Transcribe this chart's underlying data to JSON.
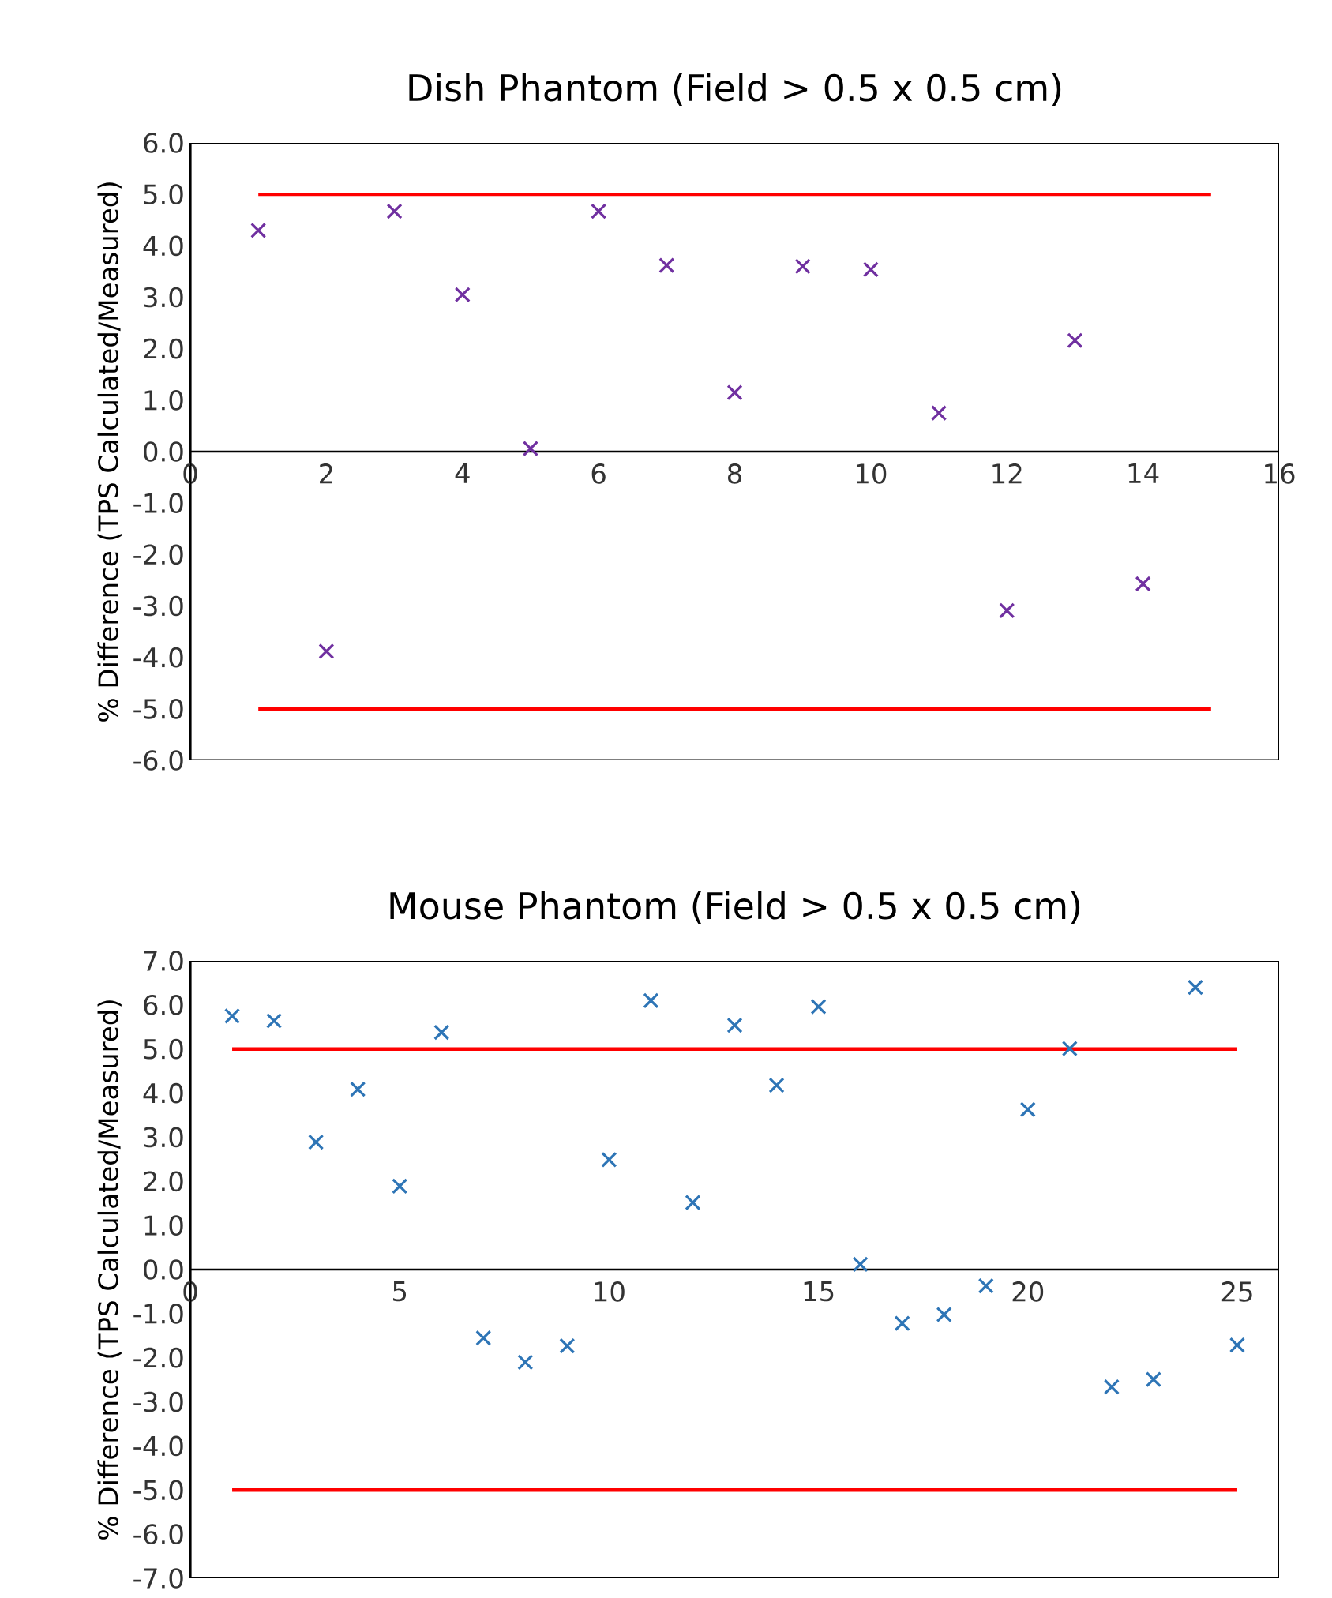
{
  "chart_data": [
    {
      "type": "scatter",
      "title": "Dish Phantom (Field > 0.5 x 0.5 cm)",
      "ylabel": "% Difference (TPS Calculated/Measured)",
      "x": [
        1,
        2,
        3,
        4,
        5,
        6,
        7,
        8,
        9,
        10,
        11,
        12,
        13,
        14
      ],
      "series": [
        {
          "color": "#7030a0",
          "marker": "cross",
          "values": [
            4.3,
            -3.88,
            4.67,
            3.05,
            0.06,
            4.67,
            3.62,
            1.15,
            3.6,
            3.54,
            0.75,
            -3.09,
            2.16,
            -2.57
          ]
        },
        {
          "type": "line",
          "color": "#ff0000",
          "marker": "none",
          "x": [
            1,
            15
          ],
          "values": [
            5,
            5
          ]
        },
        {
          "type": "line",
          "color": "#ff0000",
          "marker": "none",
          "x": [
            1,
            15
          ],
          "values": [
            -5,
            -5
          ]
        }
      ],
      "xlim": [
        0,
        16
      ],
      "xticks": [
        0,
        2,
        4,
        6,
        8,
        10,
        12,
        14,
        16
      ],
      "ylim": [
        -6,
        6
      ],
      "yticks": [
        {
          "value": -6,
          "label": "-6.0"
        },
        {
          "value": -5,
          "label": "-5.0"
        },
        {
          "value": -4,
          "label": "-4.0"
        },
        {
          "value": -3,
          "label": "-3.0"
        },
        {
          "value": -2,
          "label": "-2.0"
        },
        {
          "value": -1,
          "label": "-1.0"
        },
        {
          "value": 0,
          "label": "0.0"
        },
        {
          "value": 1,
          "label": "1.0"
        },
        {
          "value": 2,
          "label": "2.0"
        },
        {
          "value": 3,
          "label": "3.0"
        },
        {
          "value": 4,
          "label": "4.0"
        },
        {
          "value": 5,
          "label": "5.0"
        },
        {
          "value": 6,
          "label": "6.0"
        }
      ],
      "grid": false
    },
    {
      "type": "scatter",
      "title": "Mouse Phantom (Field > 0.5 x 0.5 cm)",
      "ylabel": "% Difference (TPS Calculated/Measured)",
      "x": [
        1,
        2,
        3,
        4,
        5,
        6,
        7,
        8,
        9,
        10,
        11,
        12,
        13,
        14,
        15,
        16,
        17,
        18,
        19,
        20,
        21,
        22,
        23,
        24,
        25
      ],
      "series": [
        {
          "color": "#2e75b6",
          "marker": "cross",
          "values": [
            5.75,
            5.64,
            2.89,
            4.09,
            1.89,
            5.38,
            -1.55,
            -2.1,
            -1.73,
            2.49,
            6.1,
            1.52,
            5.54,
            4.18,
            5.96,
            0.12,
            -1.22,
            -1.02,
            -0.37,
            3.63,
            5.01,
            -2.66,
            -2.49,
            6.4,
            -1.71
          ]
        },
        {
          "type": "line",
          "color": "#ff0000",
          "marker": "none",
          "x": [
            1,
            25
          ],
          "values": [
            5,
            5
          ]
        },
        {
          "type": "line",
          "color": "#ff0000",
          "marker": "none",
          "x": [
            1,
            25
          ],
          "values": [
            -5,
            -5
          ]
        }
      ],
      "xlim": [
        0,
        26
      ],
      "xticks": [
        0,
        5,
        10,
        15,
        20,
        25
      ],
      "ylim": [
        -7,
        7
      ],
      "yticks": [
        {
          "value": -7,
          "label": "-7.0"
        },
        {
          "value": -6,
          "label": "-6.0"
        },
        {
          "value": -5,
          "label": "-5.0"
        },
        {
          "value": -4,
          "label": "-4.0"
        },
        {
          "value": -3,
          "label": "-3.0"
        },
        {
          "value": -2,
          "label": "-2.0"
        },
        {
          "value": -1,
          "label": "-1.0"
        },
        {
          "value": 0,
          "label": "0.0"
        },
        {
          "value": 1,
          "label": "1.0"
        },
        {
          "value": 2,
          "label": "2.0"
        },
        {
          "value": 3,
          "label": "3.0"
        },
        {
          "value": 4,
          "label": "4.0"
        },
        {
          "value": 5,
          "label": "5.0"
        },
        {
          "value": 6,
          "label": "6.0"
        },
        {
          "value": 7,
          "label": "7.0"
        }
      ],
      "grid": false
    }
  ]
}
